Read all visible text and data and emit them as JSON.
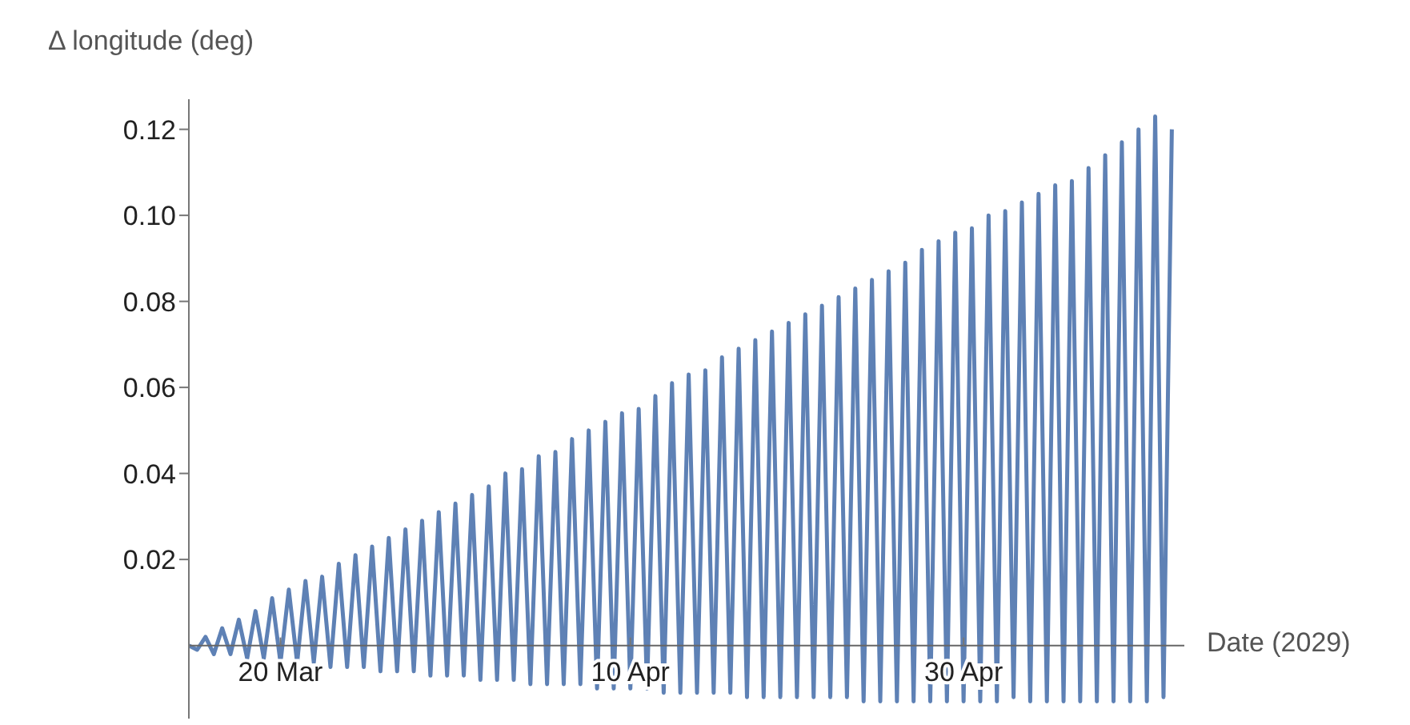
{
  "chart_data": {
    "type": "line",
    "xlabel": "Date (2029)",
    "ylabel": "Δ longitude (deg)",
    "color": "#5e81b5",
    "x": [
      "2029-03-14T12:00",
      "2029-03-15T00:00",
      "2029-03-15T12:00",
      "2029-03-16T00:00",
      "2029-03-16T12:00",
      "2029-03-17T00:00",
      "2029-03-17T12:00",
      "2029-03-18T00:00",
      "2029-03-18T12:00",
      "2029-03-19T00:00",
      "2029-03-19T12:00",
      "2029-03-20T00:00",
      "2029-03-20T12:00",
      "2029-03-21T00:00",
      "2029-03-21T12:00",
      "2029-03-22T00:00",
      "2029-03-22T12:00",
      "2029-03-23T00:00",
      "2029-03-23T12:00",
      "2029-03-24T00:00",
      "2029-03-24T12:00",
      "2029-03-25T00:00",
      "2029-03-25T12:00",
      "2029-03-26T00:00",
      "2029-03-26T12:00",
      "2029-03-27T00:00",
      "2029-03-27T12:00",
      "2029-03-28T00:00",
      "2029-03-28T12:00",
      "2029-03-29T00:00",
      "2029-03-29T12:00",
      "2029-03-30T00:00",
      "2029-03-30T12:00",
      "2029-03-31T00:00",
      "2029-03-31T12:00",
      "2029-04-01T00:00",
      "2029-04-01T12:00",
      "2029-04-02T00:00",
      "2029-04-02T12:00",
      "2029-04-03T00:00",
      "2029-04-03T12:00",
      "2029-04-04T00:00",
      "2029-04-04T12:00",
      "2029-04-05T00:00",
      "2029-04-05T12:00",
      "2029-04-06T00:00",
      "2029-04-06T12:00",
      "2029-04-07T00:00",
      "2029-04-07T12:00",
      "2029-04-08T00:00",
      "2029-04-08T12:00",
      "2029-04-09T00:00",
      "2029-04-09T12:00",
      "2029-04-10T00:00",
      "2029-04-10T12:00",
      "2029-04-11T00:00",
      "2029-04-11T12:00",
      "2029-04-12T00:00",
      "2029-04-12T12:00",
      "2029-04-13T00:00",
      "2029-04-13T12:00",
      "2029-04-14T00:00",
      "2029-04-14T12:00",
      "2029-04-15T00:00",
      "2029-04-15T12:00",
      "2029-04-16T00:00",
      "2029-04-16T12:00",
      "2029-04-17T00:00",
      "2029-04-17T12:00",
      "2029-04-18T00:00",
      "2029-04-18T12:00",
      "2029-04-19T00:00",
      "2029-04-19T12:00",
      "2029-04-20T00:00",
      "2029-04-20T12:00",
      "2029-04-21T00:00",
      "2029-04-21T12:00",
      "2029-04-22T00:00",
      "2029-04-22T12:00",
      "2029-04-23T00:00",
      "2029-04-23T12:00",
      "2029-04-24T00:00",
      "2029-04-24T12:00",
      "2029-04-25T00:00",
      "2029-04-25T12:00",
      "2029-04-26T00:00",
      "2029-04-26T12:00",
      "2029-04-27T00:00",
      "2029-04-27T12:00",
      "2029-04-28T00:00",
      "2029-04-28T12:00",
      "2029-04-29T00:00",
      "2029-04-29T12:00",
      "2029-04-30T00:00",
      "2029-04-30T12:00",
      "2029-05-01T00:00",
      "2029-05-01T12:00",
      "2029-05-02T00:00",
      "2029-05-02T12:00",
      "2029-05-03T00:00",
      "2029-05-03T12:00",
      "2029-05-04T00:00",
      "2029-05-04T12:00",
      "2029-05-05T00:00",
      "2029-05-05T12:00",
      "2029-05-06T00:00",
      "2029-05-06T12:00",
      "2029-05-07T00:00",
      "2029-05-07T12:00",
      "2029-05-08T00:00",
      "2029-05-08T12:00",
      "2029-05-09T00:00",
      "2029-05-09T12:00",
      "2029-05-10T00:00",
      "2029-05-10T12:00",
      "2029-05-11T00:00",
      "2029-05-11T12:00",
      "2029-05-12T00:00",
      "2029-05-12T12:00"
    ],
    "values": [
      0.0,
      -0.001,
      0.002,
      -0.002,
      0.004,
      -0.002,
      0.006,
      -0.003,
      0.008,
      -0.003,
      0.011,
      -0.004,
      0.013,
      -0.004,
      0.015,
      -0.004,
      0.016,
      -0.005,
      0.019,
      -0.005,
      0.021,
      -0.005,
      0.023,
      -0.006,
      0.025,
      -0.006,
      0.027,
      -0.006,
      0.029,
      -0.007,
      0.031,
      -0.007,
      0.033,
      -0.007,
      0.035,
      -0.008,
      0.037,
      -0.008,
      0.04,
      -0.008,
      0.041,
      -0.009,
      0.044,
      -0.009,
      0.045,
      -0.009,
      0.048,
      -0.009,
      0.05,
      -0.01,
      0.052,
      -0.01,
      0.054,
      -0.01,
      0.055,
      -0.01,
      0.058,
      -0.011,
      0.061,
      -0.011,
      0.063,
      -0.011,
      0.064,
      -0.011,
      0.067,
      -0.011,
      0.069,
      -0.012,
      0.071,
      -0.012,
      0.073,
      -0.012,
      0.075,
      -0.012,
      0.077,
      -0.012,
      0.079,
      -0.012,
      0.081,
      -0.012,
      0.083,
      -0.013,
      0.085,
      -0.013,
      0.087,
      -0.013,
      0.089,
      -0.013,
      0.092,
      -0.013,
      0.094,
      -0.013,
      0.096,
      -0.013,
      0.097,
      -0.013,
      0.1,
      -0.013,
      0.101,
      -0.012,
      0.103,
      -0.013,
      0.105,
      -0.013,
      0.107,
      -0.013,
      0.108,
      -0.013,
      0.111,
      -0.013,
      0.114,
      -0.013,
      0.117,
      -0.013,
      0.12,
      -0.013,
      0.123,
      -0.012,
      0.12
    ],
    "xlim": [
      "2029-03-14T12:00",
      "2029-05-13T06:00"
    ],
    "xticks": [
      {
        "value": "2029-03-20",
        "label": "20 Mar"
      },
      {
        "value": "2029-04-10",
        "label": "10 Apr"
      },
      {
        "value": "2029-04-30",
        "label": "30 Apr"
      }
    ],
    "ylim": [
      -0.017,
      0.127
    ],
    "yticks": [
      {
        "value": 0.02,
        "label": "0.02"
      },
      {
        "value": 0.04,
        "label": "0.04"
      },
      {
        "value": 0.06,
        "label": "0.06"
      },
      {
        "value": 0.08,
        "label": "0.08"
      },
      {
        "value": 0.1,
        "label": "0.10"
      },
      {
        "value": 0.12,
        "label": "0.12"
      }
    ]
  }
}
